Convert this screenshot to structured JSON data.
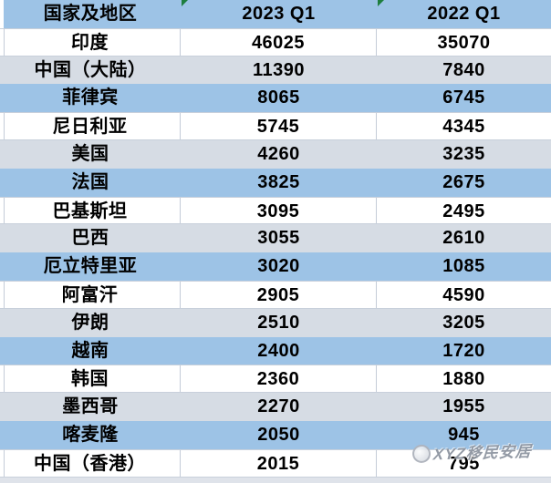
{
  "table": {
    "header": {
      "country": "国家及地区",
      "q1_2023": "2023 Q1",
      "q1_2022": "2022 Q1"
    },
    "rows": [
      {
        "country": "印度",
        "q1_2023": "46025",
        "q1_2022": "35070"
      },
      {
        "country": "中国（大陆）",
        "q1_2023": "11390",
        "q1_2022": "7840"
      },
      {
        "country": "菲律宾",
        "q1_2023": "8065",
        "q1_2022": "6745"
      },
      {
        "country": "尼日利亚",
        "q1_2023": "5745",
        "q1_2022": "4345"
      },
      {
        "country": "美国",
        "q1_2023": "4260",
        "q1_2022": "3235"
      },
      {
        "country": "法国",
        "q1_2023": "3825",
        "q1_2022": "2675"
      },
      {
        "country": "巴基斯坦",
        "q1_2023": "3095",
        "q1_2022": "2495"
      },
      {
        "country": "巴西",
        "q1_2023": "3055",
        "q1_2022": "2610"
      },
      {
        "country": "厄立特里亚",
        "q1_2023": "3020",
        "q1_2022": "1085"
      },
      {
        "country": "阿富汗",
        "q1_2023": "2905",
        "q1_2022": "4590"
      },
      {
        "country": "伊朗",
        "q1_2023": "2510",
        "q1_2022": "3205"
      },
      {
        "country": "越南",
        "q1_2023": "2400",
        "q1_2022": "1720"
      },
      {
        "country": "韩国",
        "q1_2023": "2360",
        "q1_2022": "1880"
      },
      {
        "country": "墨西哥",
        "q1_2023": "2270",
        "q1_2022": "1955"
      },
      {
        "country": "喀麦隆",
        "q1_2023": "2050",
        "q1_2022": "945"
      },
      {
        "country": "中国（香港）",
        "q1_2023": "2015",
        "q1_2022": "795"
      }
    ]
  },
  "watermark": {
    "text": "XYZ移民安居"
  },
  "colors": {
    "header_bg": "#9DC3E6",
    "row_blue": "#9DC3E6",
    "row_gray": "#D6DCE4",
    "row_white": "#FFFFFF",
    "grid_line": "#C4CCD8",
    "error_indicator_green": "#1E7E3E",
    "text": "#000000"
  },
  "chart_data": {
    "type": "table",
    "title": "",
    "columns": [
      "国家及地区",
      "2023 Q1",
      "2022 Q1"
    ],
    "rows": [
      [
        "印度",
        46025,
        35070
      ],
      [
        "中国（大陆）",
        11390,
        7840
      ],
      [
        "菲律宾",
        8065,
        6745
      ],
      [
        "尼日利亚",
        5745,
        4345
      ],
      [
        "美国",
        4260,
        3235
      ],
      [
        "法国",
        3825,
        2675
      ],
      [
        "巴基斯坦",
        3095,
        2495
      ],
      [
        "巴西",
        3055,
        2610
      ],
      [
        "厄立特里亚",
        3020,
        1085
      ],
      [
        "阿富汗",
        2905,
        4590
      ],
      [
        "伊朗",
        2510,
        3205
      ],
      [
        "越南",
        2400,
        1720
      ],
      [
        "韩国",
        2360,
        1880
      ],
      [
        "墨西哥",
        2270,
        1955
      ],
      [
        "喀麦隆",
        2050,
        945
      ],
      [
        "中国（香港）",
        2015,
        795
      ]
    ],
    "layout_hints": {
      "row_band_cycle": [
        "white",
        "gray",
        "blue"
      ],
      "header_style": "blue",
      "grid": "light lines around unfilled rows only"
    }
  }
}
